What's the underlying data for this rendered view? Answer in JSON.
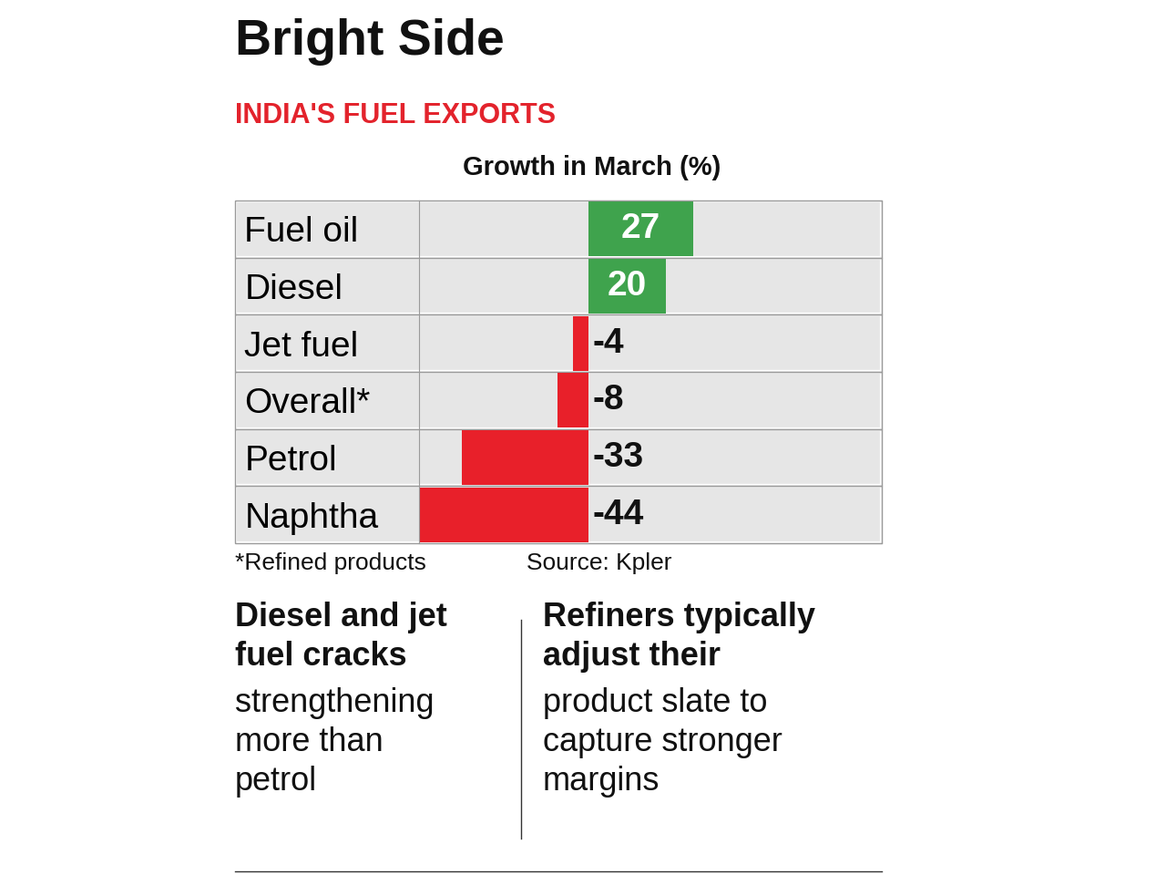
{
  "chart_data": {
    "type": "bar",
    "orientation": "horizontal",
    "title": "Bright Side",
    "subtitle": "INDIA'S FUEL EXPORTS",
    "xlabel": "Growth in March (%)",
    "categories": [
      "Fuel oil",
      "Diesel",
      "Jet fuel",
      "Overall*",
      "Petrol",
      "Naphtha"
    ],
    "values": [
      27,
      20,
      -4,
      -8,
      -33,
      -44
    ],
    "colors": [
      "#3fa34d",
      "#3fa34d",
      "#e8202a",
      "#e8202a",
      "#e8202a",
      "#e8202a"
    ],
    "xlim": [
      -44,
      76
    ],
    "data_labels": true,
    "tick_labels": "y",
    "grid": false,
    "footnote": "*Refined products",
    "source": "Source: Kpler",
    "annotations": [
      {
        "bold": "Diesel and jet fuel cracks",
        "text": "strengthening more than petrol"
      },
      {
        "bold": "Refiners typically adjust their",
        "text": "product slate to capture stronger margins"
      }
    ]
  }
}
